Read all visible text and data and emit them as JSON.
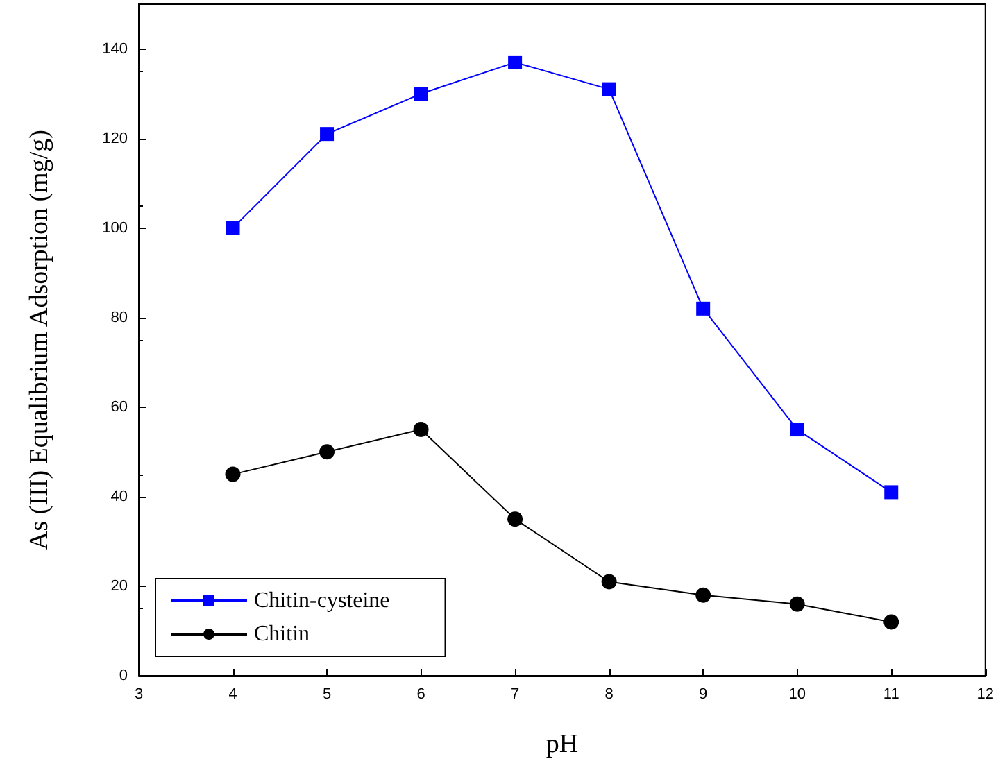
{
  "chart_data": {
    "type": "line",
    "xlabel": "pH",
    "ylabel": "As (III) Equalibrium Adsorption (mg/g)",
    "x": [
      4,
      5,
      6,
      7,
      8,
      9,
      10,
      11
    ],
    "series": [
      {
        "name": "Chitin-cysteine",
        "color": "#0000ff",
        "marker": "square",
        "values": [
          100,
          121,
          130,
          137,
          131,
          82,
          55,
          41
        ]
      },
      {
        "name": "Chitin",
        "color": "#000000",
        "marker": "circle",
        "values": [
          45,
          50,
          55,
          35,
          21,
          18,
          16,
          12
        ]
      }
    ],
    "xlim": [
      3,
      12
    ],
    "xticks": [
      3,
      4,
      5,
      6,
      7,
      8,
      9,
      10,
      11,
      12
    ],
    "ylim": [
      0,
      150
    ],
    "yticks": [
      0,
      20,
      40,
      60,
      80,
      100,
      120,
      140
    ],
    "grid": false,
    "legend": "bottom left",
    "line_style": "solid"
  }
}
